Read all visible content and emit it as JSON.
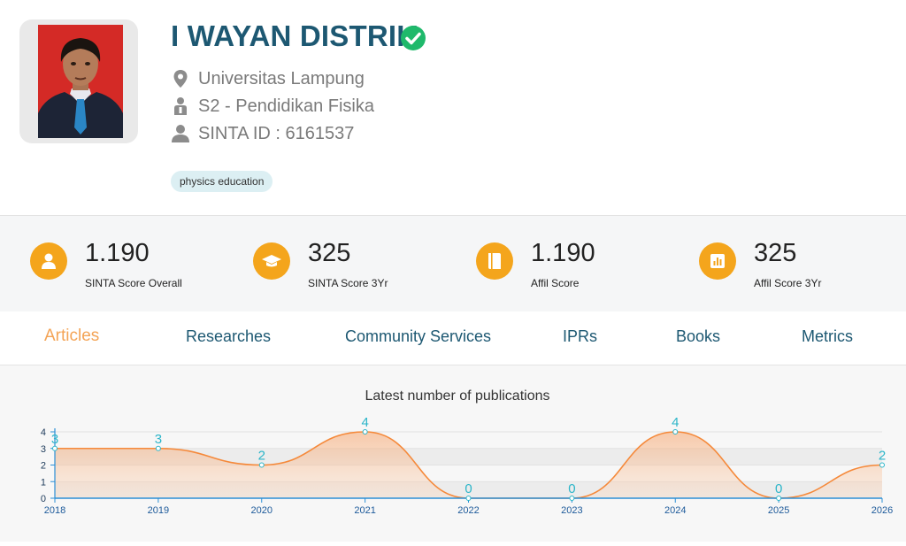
{
  "profile": {
    "name": "I WAYAN DISTRIK",
    "affiliation": "Universitas Lampung",
    "program": "S2 - Pendidikan Fisika",
    "sinta_id": "SINTA ID : 6161537",
    "tag": "physics education",
    "icons": [
      "verified-check-icon",
      "location-pin-icon",
      "graduate-person-icon",
      "user-icon"
    ]
  },
  "stats": [
    {
      "value": "1.190",
      "label": "SINTA Score Overall",
      "icon": "user-icon"
    },
    {
      "value": "325",
      "label": "SINTA Score 3Yr",
      "icon": "graduation-cap-icon"
    },
    {
      "value": "1.190",
      "label": "Affil Score",
      "icon": "book-icon"
    },
    {
      "value": "325",
      "label": "Affil Score 3Yr",
      "icon": "bar-chart-icon"
    }
  ],
  "tabs": [
    {
      "label": "Articles",
      "active": true
    },
    {
      "label": "Researches",
      "active": false
    },
    {
      "label": "Community Services",
      "active": false
    },
    {
      "label": "IPRs",
      "active": false
    },
    {
      "label": "Books",
      "active": false
    },
    {
      "label": "Metrics",
      "active": false
    }
  ],
  "colors": {
    "accent": "#f4a51c",
    "title": "#1d5872",
    "active_tab": "#f4a456",
    "line": "#f5893a",
    "data_label": "#2bb5c9",
    "verified": "#1fb96b"
  },
  "chart_data": {
    "type": "area",
    "title": "Latest number of publications",
    "x": [
      "2018",
      "2019",
      "2020",
      "2021",
      "2022",
      "2023",
      "2024",
      "2025",
      "2026"
    ],
    "values": [
      3,
      3,
      2,
      4,
      0,
      0,
      4,
      0,
      2
    ],
    "y_ticks": [
      "0",
      "1",
      "2",
      "3",
      "4"
    ],
    "ylim": [
      0,
      4
    ],
    "grid": true,
    "smooth": true
  }
}
